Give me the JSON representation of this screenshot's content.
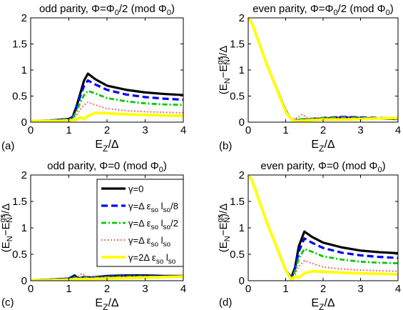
{
  "series_styles": [
    {
      "color": "#000000",
      "dash": "",
      "width": 3.2
    },
    {
      "color": "#0000ff",
      "dash": "9,5",
      "width": 3.2
    },
    {
      "color": "#00cc00",
      "dash": "7,3,2,3",
      "width": 2.8
    },
    {
      "color": "#ff4040",
      "dash": "1.5,3",
      "width": 2
    },
    {
      "color": "#ffff00",
      "dash": "",
      "width": 3.8
    }
  ],
  "legend": [
    {
      "base": "γ=0",
      "sub1": "",
      "mid": "",
      "sub2": "",
      "tail": ""
    },
    {
      "base": "γ=Δ ε",
      "sub1": "so",
      "mid": " l",
      "sub2": "so",
      "tail": "/8"
    },
    {
      "base": "γ=Δ ε",
      "sub1": "so",
      "mid": " l",
      "sub2": "so",
      "tail": "/2"
    },
    {
      "base": "γ=Δ ε",
      "sub1": "so",
      "mid": " l",
      "sub2": "so",
      "tail": ""
    },
    {
      "base": "γ=2Δ ε",
      "sub1": "so",
      "mid": " l",
      "sub2": "so",
      "tail": ""
    }
  ],
  "chart_data": [
    {
      "type": "line",
      "panel_label": "(a)",
      "title": {
        "pre": "odd parity, Φ=Φ",
        "sub": "0",
        "mid": "/2 (mod Φ",
        "sub2": "0",
        "post": ")"
      },
      "xlabel": {
        "base": "E",
        "sub": "Z",
        "post": "/Δ"
      },
      "ylabel": "",
      "xlim": [
        0,
        4
      ],
      "ylim": [
        0,
        2
      ],
      "xticks": [
        0,
        1,
        2,
        3,
        4
      ],
      "yticks": [
        0,
        0.5,
        1,
        1.5,
        2
      ],
      "series": [
        {
          "x": [
            0,
            0.5,
            1.0,
            1.1,
            1.2,
            1.3,
            1.4,
            1.5,
            1.7,
            2.0,
            2.5,
            3.0,
            3.5,
            4.0
          ],
          "y": [
            0.02,
            0.03,
            0.06,
            0.1,
            0.3,
            0.55,
            0.8,
            0.93,
            0.82,
            0.7,
            0.62,
            0.57,
            0.54,
            0.52
          ]
        },
        {
          "x": [
            0,
            0.5,
            1.0,
            1.1,
            1.2,
            1.3,
            1.4,
            1.5,
            1.7,
            2.0,
            2.5,
            3.0,
            3.5,
            4.0
          ],
          "y": [
            0.02,
            0.03,
            0.06,
            0.1,
            0.27,
            0.5,
            0.7,
            0.8,
            0.72,
            0.62,
            0.53,
            0.48,
            0.45,
            0.43
          ]
        },
        {
          "x": [
            0,
            0.5,
            1.0,
            1.1,
            1.2,
            1.3,
            1.4,
            1.5,
            1.7,
            2.0,
            2.5,
            3.0,
            3.5,
            4.0
          ],
          "y": [
            0.02,
            0.03,
            0.05,
            0.08,
            0.2,
            0.38,
            0.52,
            0.6,
            0.55,
            0.46,
            0.4,
            0.36,
            0.34,
            0.33
          ]
        },
        {
          "x": [
            0,
            0.5,
            1.0,
            1.1,
            1.2,
            1.3,
            1.4,
            1.5,
            1.7,
            2.0,
            2.5,
            3.0,
            3.5,
            4.0
          ],
          "y": [
            0.02,
            0.03,
            0.04,
            0.06,
            0.13,
            0.24,
            0.33,
            0.38,
            0.33,
            0.26,
            0.22,
            0.2,
            0.19,
            0.18
          ]
        },
        {
          "x": [
            0,
            0.5,
            1.0,
            1.2,
            1.3,
            1.4,
            1.5,
            1.7,
            2.0,
            2.5,
            3.0,
            3.5,
            4.0
          ],
          "y": [
            0.02,
            0.02,
            0.03,
            0.05,
            0.09,
            0.06,
            0.12,
            0.18,
            0.17,
            0.15,
            0.14,
            0.13,
            0.12
          ]
        }
      ]
    },
    {
      "type": "line",
      "panel_label": "(b)",
      "title": {
        "pre": "even parity, Φ=Φ",
        "sub": "0",
        "mid": "/2 (mod Φ",
        "sub2": "0",
        "post": ")"
      },
      "xlabel": {
        "base": "E",
        "sub": "Z",
        "post": "/Δ"
      },
      "ylabel": {
        "pre": "(E",
        "sub": "N",
        "mid": "−E",
        "sup": "gs",
        "sub2": "N",
        "post": ")/Δ"
      },
      "xlim": [
        0,
        4
      ],
      "ylim": [
        0,
        2
      ],
      "xticks": [
        0,
        1,
        2,
        3,
        4
      ],
      "yticks": [
        0,
        0.5,
        1,
        1.5,
        2
      ],
      "series": [
        {
          "x": [
            0,
            0.1,
            0.5,
            1.0,
            1.15,
            1.3,
            1.5,
            2.0,
            2.5,
            3.0,
            3.5,
            4.0
          ],
          "y": [
            2.0,
            1.9,
            1.1,
            0.22,
            0.05,
            0.03,
            0.04,
            0.07,
            0.09,
            0.08,
            0.07,
            0.06
          ]
        },
        {
          "x": [
            0,
            0.1,
            0.5,
            1.0,
            1.15,
            1.3,
            1.5,
            2.0,
            2.5,
            3.0,
            3.5,
            4.0
          ],
          "y": [
            2.0,
            1.9,
            1.1,
            0.21,
            0.05,
            0.04,
            0.05,
            0.08,
            0.1,
            0.09,
            0.08,
            0.07
          ]
        },
        {
          "x": [
            0,
            0.1,
            0.5,
            1.0,
            1.15,
            1.3,
            1.5,
            2.0,
            2.5,
            3.0,
            3.5,
            4.0
          ],
          "y": [
            2.0,
            1.9,
            1.1,
            0.2,
            0.05,
            0.05,
            0.06,
            0.08,
            0.09,
            0.08,
            0.07,
            0.06
          ]
        },
        {
          "x": [
            0,
            0.1,
            0.5,
            1.0,
            1.15,
            1.3,
            1.45,
            1.6,
            2.0,
            2.5,
            3.0,
            3.5,
            4.0
          ],
          "y": [
            2.0,
            1.9,
            1.1,
            0.2,
            0.05,
            0.08,
            0.15,
            0.07,
            0.08,
            0.09,
            0.08,
            0.07,
            0.06
          ]
        },
        {
          "x": [
            0,
            0.1,
            0.5,
            1.0,
            1.15,
            1.3,
            1.5,
            2.0,
            2.5,
            3.0,
            3.5,
            4.0
          ],
          "y": [
            2.0,
            1.9,
            1.1,
            0.2,
            0.05,
            0.02,
            0.03,
            0.05,
            0.05,
            0.06,
            0.07,
            0.08
          ]
        }
      ]
    },
    {
      "type": "line",
      "panel_label": "(c)",
      "title": {
        "pre": "odd parity, Φ=0 (mod Φ",
        "sub": "0",
        "mid": ")",
        "sub2": "",
        "post": ""
      },
      "xlabel": {
        "base": "E",
        "sub": "Z",
        "post": "/Δ"
      },
      "ylabel": {
        "pre": "(E",
        "sub": "N",
        "mid": "−E",
        "sup": "gs",
        "sub2": "N",
        "post": ")/Δ"
      },
      "xlim": [
        0,
        4
      ],
      "ylim": [
        0,
        2
      ],
      "xticks": [
        0,
        1,
        2,
        3,
        4
      ],
      "yticks": [
        0,
        0.5,
        1,
        1.5,
        2
      ],
      "series": [
        {
          "x": [
            0,
            0.5,
            1.0,
            1.15,
            1.25,
            1.4,
            1.6,
            2.0,
            2.5,
            3.0,
            3.5,
            4.0
          ],
          "y": [
            0.01,
            0.02,
            0.04,
            0.1,
            0.04,
            0.07,
            0.06,
            0.09,
            0.1,
            0.1,
            0.09,
            0.09
          ]
        },
        {
          "x": [
            0,
            0.5,
            1.0,
            1.15,
            1.25,
            1.4,
            1.6,
            2.0,
            2.5,
            3.0,
            3.5,
            4.0
          ],
          "y": [
            0.01,
            0.02,
            0.04,
            0.08,
            0.04,
            0.06,
            0.06,
            0.08,
            0.09,
            0.09,
            0.08,
            0.08
          ]
        },
        {
          "x": [
            0,
            0.5,
            1.0,
            1.15,
            1.25,
            1.4,
            1.6,
            2.0,
            2.5,
            3.0,
            3.5,
            4.0
          ],
          "y": [
            0.01,
            0.02,
            0.03,
            0.06,
            0.04,
            0.06,
            0.05,
            0.07,
            0.08,
            0.08,
            0.07,
            0.07
          ]
        },
        {
          "x": [
            0,
            0.5,
            1.0,
            1.2,
            1.35,
            1.5,
            1.7,
            2.0,
            2.5,
            3.0,
            3.5,
            4.0
          ],
          "y": [
            0.01,
            0.02,
            0.03,
            0.05,
            0.14,
            0.05,
            0.06,
            0.07,
            0.08,
            0.08,
            0.07,
            0.07
          ]
        },
        {
          "x": [
            0,
            0.5,
            1.0,
            1.2,
            1.5,
            2.0,
            2.5,
            3.0,
            3.5,
            4.0
          ],
          "y": [
            0.01,
            0.01,
            0.02,
            0.03,
            0.03,
            0.04,
            0.05,
            0.06,
            0.07,
            0.08
          ]
        }
      ]
    },
    {
      "type": "line",
      "panel_label": "(d)",
      "title": {
        "pre": "even parity, Φ=0 (mod Φ",
        "sub": "0",
        "mid": ")",
        "sub2": "",
        "post": ""
      },
      "xlabel": {
        "base": "E",
        "sub": "Z",
        "post": "/Δ"
      },
      "ylabel": {
        "pre": "(E",
        "sub": "N",
        "mid": "−E",
        "sup": "gs",
        "sub2": "N",
        "post": ")/Δ"
      },
      "xlim": [
        0,
        4
      ],
      "ylim": [
        0,
        2
      ],
      "xticks": [
        0,
        1,
        2,
        3,
        4
      ],
      "yticks": [
        0,
        0.5,
        1,
        1.5,
        2
      ],
      "series": [
        {
          "x": [
            0,
            0.1,
            0.5,
            1.0,
            1.15,
            1.25,
            1.35,
            1.5,
            1.7,
            2.0,
            2.5,
            3.0,
            3.5,
            4.0
          ],
          "y": [
            2.0,
            1.9,
            1.1,
            0.2,
            0.06,
            0.25,
            0.65,
            0.93,
            0.83,
            0.72,
            0.63,
            0.57,
            0.54,
            0.52
          ]
        },
        {
          "x": [
            0,
            0.1,
            0.5,
            1.0,
            1.15,
            1.25,
            1.35,
            1.5,
            1.7,
            2.0,
            2.5,
            3.0,
            3.5,
            4.0
          ],
          "y": [
            2.0,
            1.9,
            1.1,
            0.2,
            0.05,
            0.22,
            0.55,
            0.8,
            0.72,
            0.62,
            0.53,
            0.48,
            0.45,
            0.43
          ]
        },
        {
          "x": [
            0,
            0.1,
            0.5,
            1.0,
            1.15,
            1.25,
            1.35,
            1.5,
            1.7,
            2.0,
            2.5,
            3.0,
            3.5,
            4.0
          ],
          "y": [
            2.0,
            1.9,
            1.1,
            0.2,
            0.04,
            0.18,
            0.42,
            0.6,
            0.55,
            0.46,
            0.4,
            0.36,
            0.34,
            0.33
          ]
        },
        {
          "x": [
            0,
            0.1,
            0.5,
            1.0,
            1.15,
            1.25,
            1.35,
            1.5,
            1.7,
            2.0,
            2.5,
            3.0,
            3.5,
            4.0
          ],
          "y": [
            2.0,
            1.9,
            1.1,
            0.2,
            0.03,
            0.12,
            0.27,
            0.38,
            0.33,
            0.26,
            0.22,
            0.2,
            0.19,
            0.18
          ]
        },
        {
          "x": [
            0,
            0.1,
            0.5,
            1.0,
            1.15,
            1.25,
            1.35,
            1.5,
            1.7,
            2.0,
            2.5,
            3.0,
            3.5,
            4.0
          ],
          "y": [
            2.0,
            1.9,
            1.1,
            0.2,
            0.02,
            0.08,
            0.06,
            0.14,
            0.18,
            0.17,
            0.15,
            0.14,
            0.13,
            0.12
          ]
        }
      ]
    }
  ]
}
